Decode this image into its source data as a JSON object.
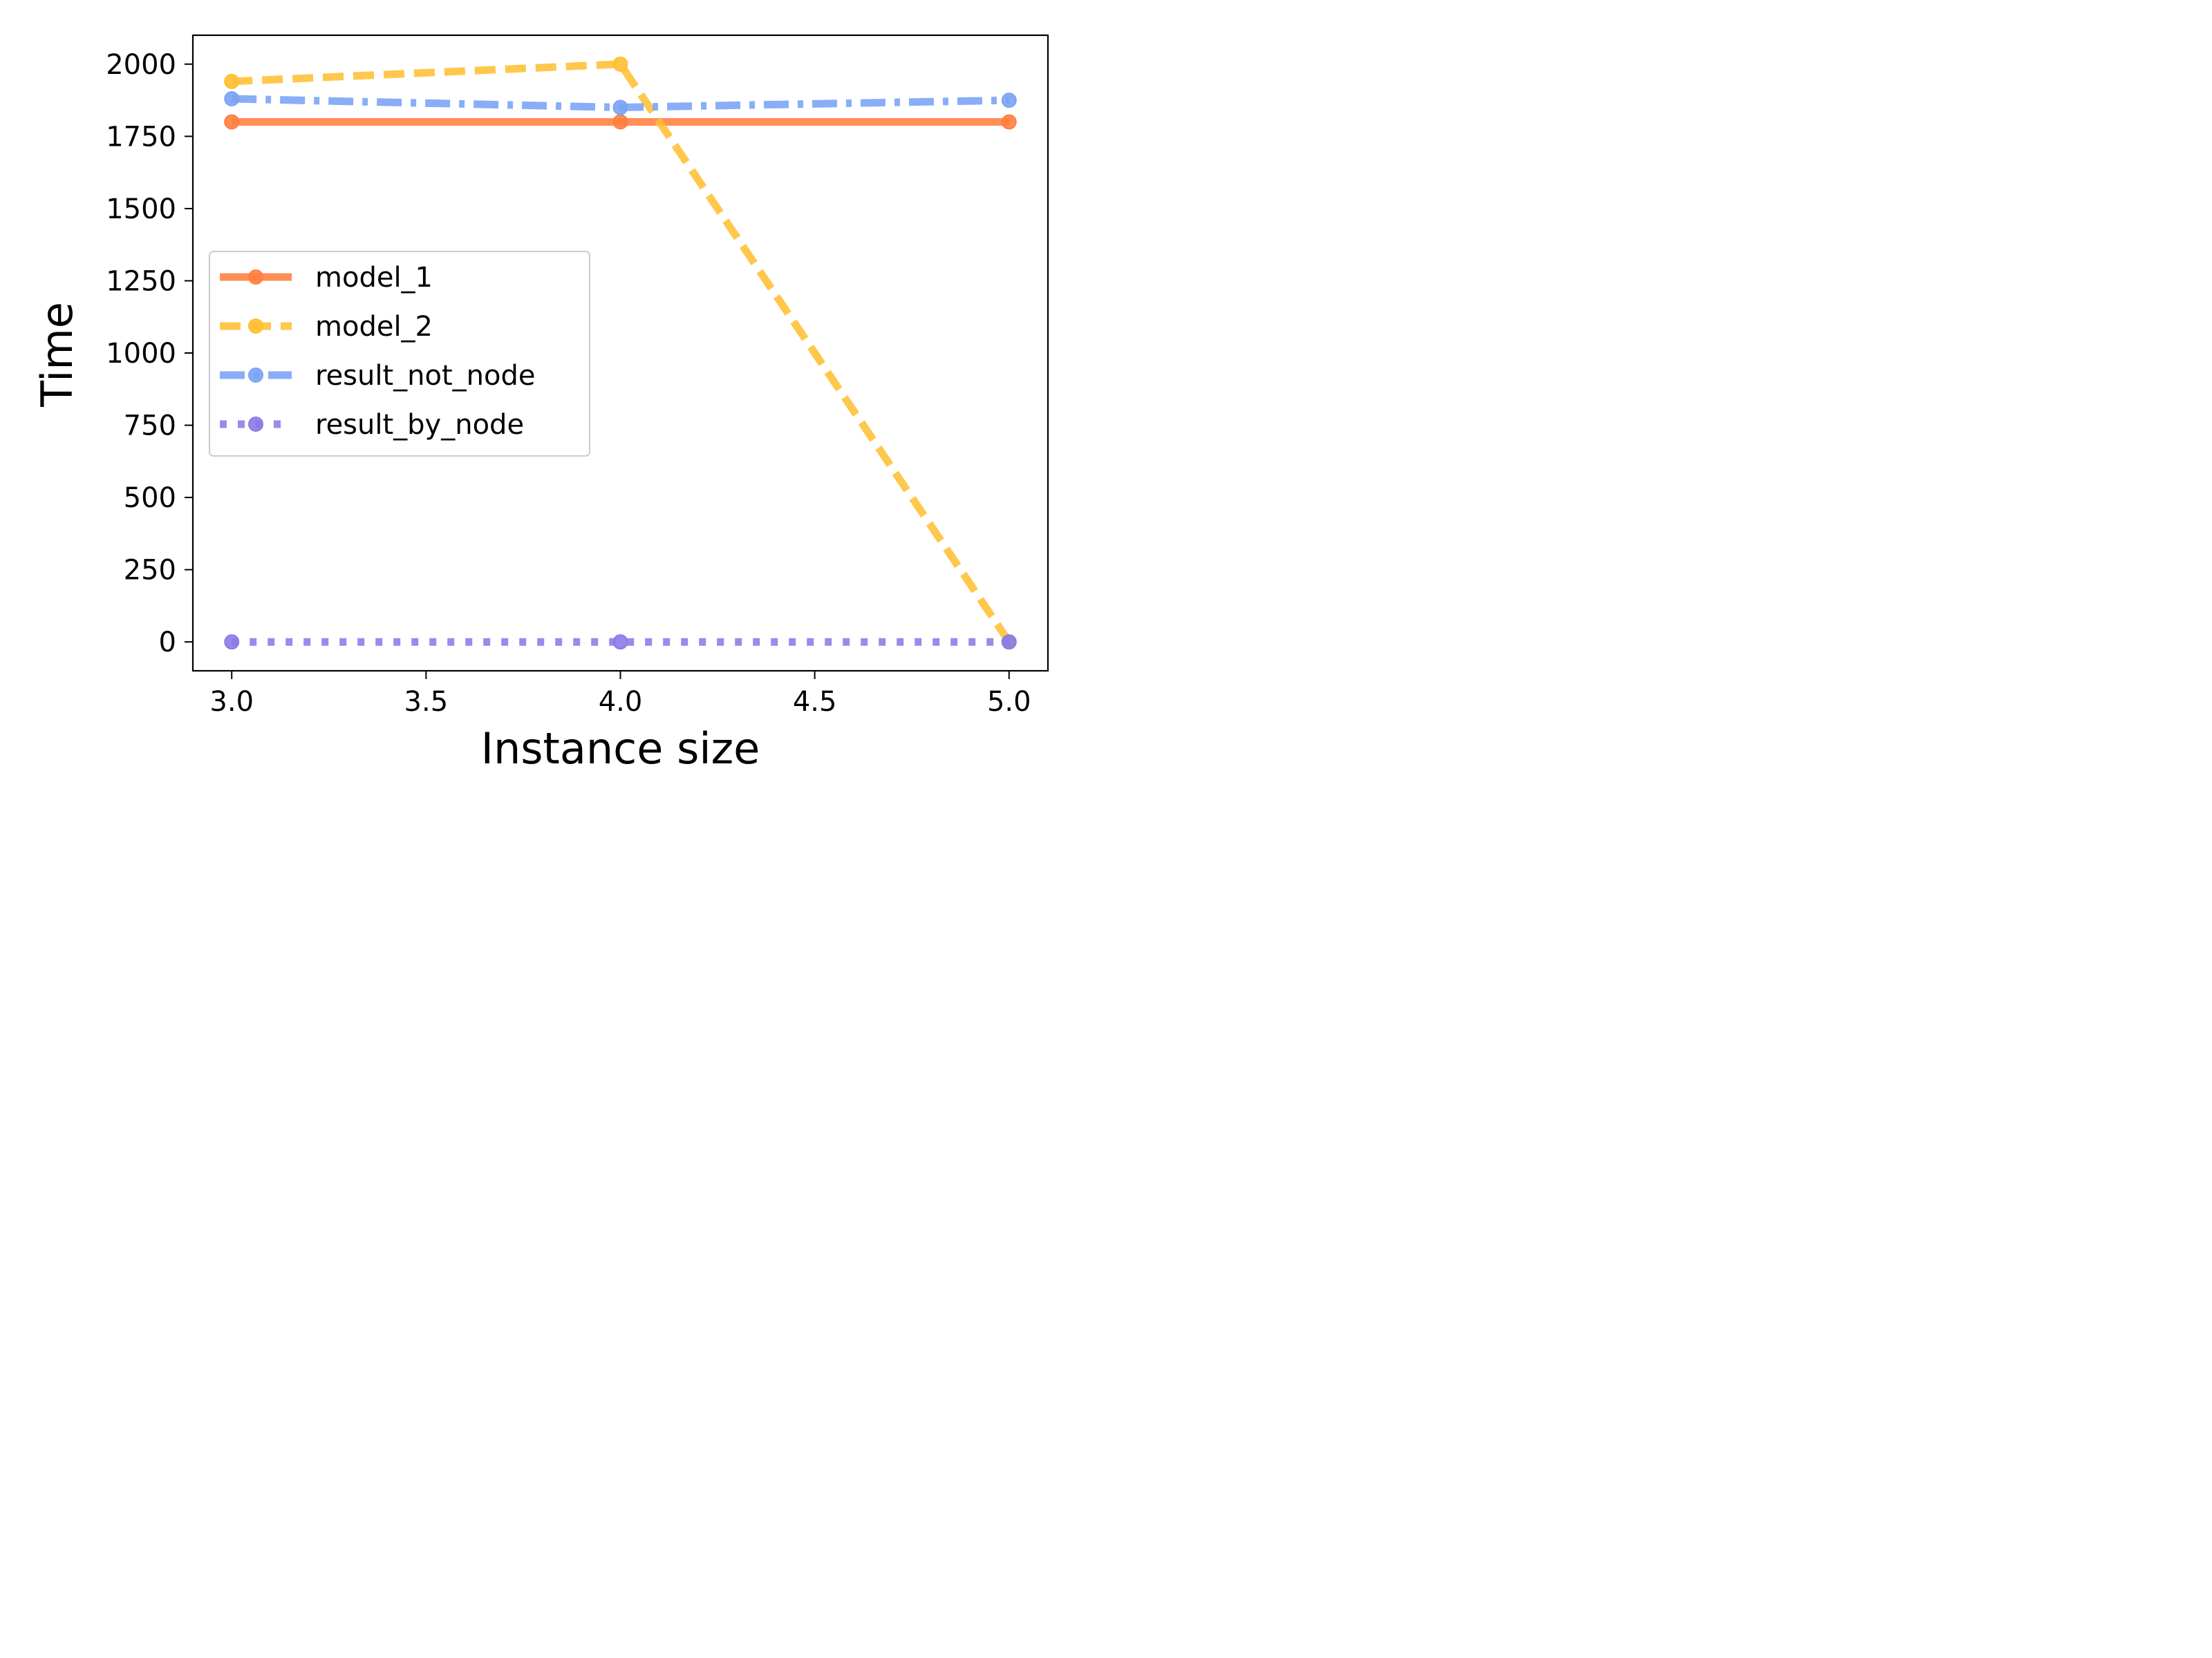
{
  "chart_data": {
    "type": "line",
    "title": "",
    "xlabel": "Instance size",
    "ylabel": "Time",
    "xlim": [
      2.9,
      5.1
    ],
    "ylim": [
      -100,
      2100
    ],
    "xticks": [
      3.0,
      3.5,
      4.0,
      4.5,
      5.0
    ],
    "xtick_labels": [
      "3.0",
      "3.5",
      "4.0",
      "4.5",
      "5.0"
    ],
    "yticks": [
      0,
      250,
      500,
      750,
      1000,
      1250,
      1500,
      1750,
      2000
    ],
    "ytick_labels": [
      "0",
      "250",
      "500",
      "750",
      "1000",
      "1250",
      "1500",
      "1750",
      "2000"
    ],
    "grid": false,
    "legend_position": "center-left",
    "x": [
      3.0,
      4.0,
      5.0
    ],
    "series": [
      {
        "name": "model_1",
        "values": [
          1800,
          1800,
          1800
        ],
        "color": "#ff7f3e",
        "linestyle": "solid"
      },
      {
        "name": "model_2",
        "values": [
          1940,
          2000,
          0
        ],
        "color": "#ffbf33",
        "linestyle": "dashed"
      },
      {
        "name": "result_not_node",
        "values": [
          1880,
          1850,
          1875
        ],
        "color": "#7aa3f5",
        "linestyle": "dashdot"
      },
      {
        "name": "result_by_node",
        "values": [
          0,
          0,
          0
        ],
        "color": "#8c7ae8",
        "linestyle": "dotted"
      }
    ]
  }
}
